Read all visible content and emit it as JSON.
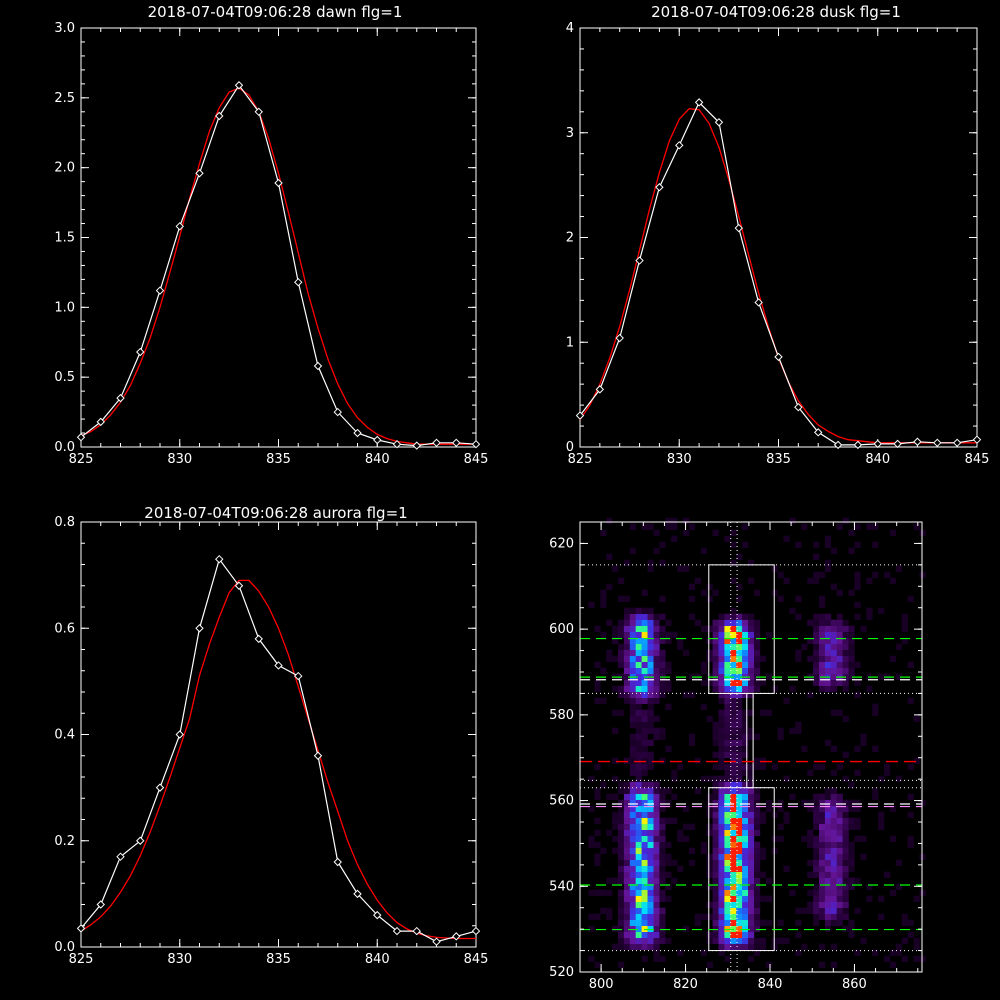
{
  "colors": {
    "background": "#000000",
    "axes": "#ffffff",
    "data_line": "#ffffff",
    "fit_line": "#ff0000",
    "green_line": "#00ff00",
    "red_line": "#ff0000",
    "pink_line": "#ff88ff"
  },
  "chart_data": [
    {
      "type": "line",
      "title": "2018-07-04T09:06:28 dawn flg=1",
      "xlim": [
        825,
        845
      ],
      "ylim": [
        0,
        3.0
      ],
      "xticks": [
        "825",
        "830",
        "835",
        "840",
        "845"
      ],
      "yticks": [
        "0.0",
        "0.5",
        "1.0",
        "1.5",
        "2.0",
        "2.5",
        "3.0"
      ],
      "series": [
        {
          "style": "line-with-diamond-markers",
          "x": [
            825,
            826,
            827,
            828,
            829,
            830,
            831,
            832,
            833,
            834,
            835,
            836,
            837,
            838,
            839,
            840,
            841,
            842,
            843,
            844,
            845
          ],
          "y": [
            0.07,
            0.18,
            0.35,
            0.68,
            1.12,
            1.58,
            1.96,
            2.37,
            2.59,
            2.4,
            1.89,
            1.18,
            0.58,
            0.25,
            0.1,
            0.05,
            0.02,
            0.01,
            0.03,
            0.03,
            0.02
          ]
        },
        {
          "style": "gaussian-fit",
          "x": [
            825,
            825.5,
            826,
            826.5,
            827,
            827.5,
            828,
            828.5,
            829,
            829.5,
            830,
            830.5,
            831,
            831.5,
            832,
            832.5,
            833,
            833.5,
            834,
            834.5,
            835,
            835.5,
            836,
            836.5,
            837,
            837.5,
            838,
            838.5,
            839,
            839.5,
            840,
            840.5,
            841,
            841.5,
            842,
            842.5,
            843,
            843.5,
            844,
            844.5,
            845
          ],
          "y": [
            0.08,
            0.11,
            0.16,
            0.23,
            0.32,
            0.44,
            0.6,
            0.78,
            1.0,
            1.25,
            1.51,
            1.78,
            2.03,
            2.26,
            2.43,
            2.54,
            2.57,
            2.52,
            2.4,
            2.21,
            1.96,
            1.68,
            1.39,
            1.1,
            0.85,
            0.63,
            0.45,
            0.31,
            0.21,
            0.14,
            0.09,
            0.06,
            0.04,
            0.03,
            0.02,
            0.02,
            0.02,
            0.02,
            0.02,
            0.02,
            0.02
          ]
        }
      ]
    },
    {
      "type": "line",
      "title": "2018-07-04T09:06:28 dusk flg=1",
      "xlim": [
        825,
        845
      ],
      "ylim": [
        0,
        4
      ],
      "xticks": [
        "825",
        "830",
        "835",
        "840",
        "845"
      ],
      "yticks": [
        "0",
        "1",
        "2",
        "3",
        "4"
      ],
      "series": [
        {
          "style": "line-with-diamond-markers",
          "x": [
            825,
            826,
            827,
            828,
            829,
            830,
            831,
            832,
            833,
            834,
            835,
            836,
            837,
            838,
            839,
            840,
            841,
            842,
            843,
            844,
            845
          ],
          "y": [
            0.3,
            0.55,
            1.04,
            1.78,
            2.48,
            2.88,
            3.29,
            3.1,
            2.09,
            1.38,
            0.86,
            0.38,
            0.14,
            0.02,
            0.02,
            0.03,
            0.03,
            0.05,
            0.04,
            0.04,
            0.07
          ]
        },
        {
          "style": "gaussian-fit",
          "x": [
            825,
            825.5,
            826,
            826.5,
            827,
            827.5,
            828,
            828.5,
            829,
            829.5,
            830,
            830.5,
            831,
            831.5,
            832,
            832.5,
            833,
            833.5,
            834,
            834.5,
            835,
            835.5,
            836,
            836.5,
            837,
            837.5,
            838,
            838.5,
            839,
            839.5,
            840,
            840.5,
            841,
            841.5,
            842,
            842.5,
            843,
            843.5,
            844,
            844.5,
            845
          ],
          "y": [
            0.26,
            0.4,
            0.6,
            0.85,
            1.15,
            1.5,
            1.88,
            2.27,
            2.62,
            2.92,
            3.13,
            3.23,
            3.22,
            3.09,
            2.86,
            2.55,
            2.2,
            1.83,
            1.47,
            1.14,
            0.85,
            0.62,
            0.44,
            0.31,
            0.21,
            0.15,
            0.1,
            0.07,
            0.06,
            0.05,
            0.04,
            0.04,
            0.04,
            0.04,
            0.04,
            0.04,
            0.04,
            0.04,
            0.04,
            0.04,
            0.04
          ]
        }
      ]
    },
    {
      "type": "line",
      "title": "2018-07-04T09:06:28 aurora flg=1",
      "xlim": [
        825,
        845
      ],
      "ylim": [
        0,
        0.8
      ],
      "xticks": [
        "825",
        "830",
        "835",
        "840",
        "845"
      ],
      "yticks": [
        "0.0",
        "0.2",
        "0.4",
        "0.6",
        "0.8"
      ],
      "series": [
        {
          "style": "line-with-diamond-markers",
          "x": [
            825,
            826,
            827,
            828,
            829,
            830,
            831,
            832,
            833,
            834,
            835,
            836,
            837,
            838,
            839,
            840,
            841,
            842,
            843,
            844,
            845
          ],
          "y": [
            0.035,
            0.08,
            0.17,
            0.2,
            0.3,
            0.4,
            0.6,
            0.73,
            0.68,
            0.58,
            0.53,
            0.51,
            0.36,
            0.16,
            0.1,
            0.06,
            0.03,
            0.03,
            0.01,
            0.02,
            0.03
          ]
        },
        {
          "style": "gaussian-fit",
          "x": [
            825,
            825.5,
            826,
            826.5,
            827,
            827.5,
            828,
            828.5,
            829,
            829.5,
            830,
            830.5,
            831,
            831.5,
            832,
            832.5,
            833,
            833.5,
            834,
            834.5,
            835,
            835.5,
            836,
            836.5,
            837,
            837.5,
            838,
            838.5,
            839,
            839.5,
            840,
            840.5,
            841,
            841.5,
            842,
            842.5,
            843,
            843.5,
            844,
            844.5,
            845
          ],
          "y": [
            0.03,
            0.042,
            0.057,
            0.077,
            0.103,
            0.134,
            0.172,
            0.216,
            0.266,
            0.319,
            0.375,
            0.43,
            0.511,
            0.57,
            0.621,
            0.667,
            0.69,
            0.69,
            0.67,
            0.64,
            0.6,
            0.55,
            0.49,
            0.43,
            0.37,
            0.31,
            0.255,
            0.2,
            0.155,
            0.118,
            0.088,
            0.064,
            0.046,
            0.034,
            0.026,
            0.021,
            0.018,
            0.017,
            0.016,
            0.016,
            0.016
          ]
        }
      ]
    },
    {
      "type": "heatmap",
      "xlim": [
        795,
        876
      ],
      "ylim": [
        520,
        625
      ],
      "xticks": [
        "800",
        "820",
        "840",
        "860"
      ],
      "yticks": [
        "520",
        "540",
        "560",
        "580",
        "600",
        "620"
      ],
      "emission_columns": [
        {
          "x_center": 809,
          "spans": [
            [
              584,
              602,
              0.7
            ],
            [
              526,
              562,
              0.75
            ]
          ]
        },
        {
          "x_center": 831,
          "spans": [
            [
              585,
              601,
              1.0
            ],
            [
              526,
              562,
              1.0
            ]
          ]
        },
        {
          "x_center": 854,
          "spans": [
            [
              586,
              601,
              0.35
            ],
            [
              532,
              560,
              0.3
            ]
          ]
        }
      ],
      "boxes": [
        {
          "x": [
            825.5,
            841
          ],
          "y": [
            585,
            615
          ]
        },
        {
          "x": [
            825.5,
            841
          ],
          "y": [
            525,
            563
          ]
        },
        {
          "x": [
            834.5,
            836
          ],
          "y": [
            563,
            585
          ]
        }
      ],
      "dotted_vertical_x": [
        830.7,
        832.2
      ],
      "green_dashed_y": [
        597.8,
        588.8,
        540.3,
        529.9
      ],
      "red_dashed_y": [
        569.1
      ],
      "pink_dashed_y": [
        558.6
      ],
      "white_dashed_y": [
        588.2,
        559.2
      ],
      "dotted_horizontal_y": [
        615,
        585,
        563,
        525,
        564.7
      ]
    }
  ]
}
